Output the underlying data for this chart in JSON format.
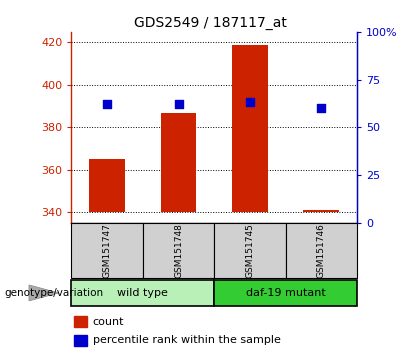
{
  "title": "GDS2549 / 187117_at",
  "samples": [
    "GSM151747",
    "GSM151748",
    "GSM151745",
    "GSM151746"
  ],
  "bar_values": [
    365,
    387,
    419,
    341
  ],
  "percentile_values": [
    391,
    391,
    392,
    389
  ],
  "ylim_left": [
    335,
    425
  ],
  "yticks_left": [
    340,
    360,
    380,
    400,
    420
  ],
  "yticks_right": [
    0,
    25,
    50,
    75,
    100
  ],
  "ylim_right": [
    0,
    100
  ],
  "bar_color": "#cc2200",
  "dot_color": "#0000cc",
  "bar_bottom": 340,
  "groups": [
    {
      "label": "wild type",
      "indices": [
        0,
        1
      ],
      "color": "#b8f0b8"
    },
    {
      "label": "daf-19 mutant",
      "indices": [
        2,
        3
      ],
      "color": "#33cc33"
    }
  ],
  "group_label": "genotype/variation",
  "legend_count_label": "count",
  "legend_percentile_label": "percentile rank within the sample",
  "title_fontsize": 10,
  "axis_label_color_left": "#cc2200",
  "axis_label_color_right": "#0000cc",
  "tick_label_size": 8,
  "sample_bg_color": "#d0d0d0",
  "plot_bg_color": "#ffffff",
  "fig_bg_color": "#ffffff"
}
